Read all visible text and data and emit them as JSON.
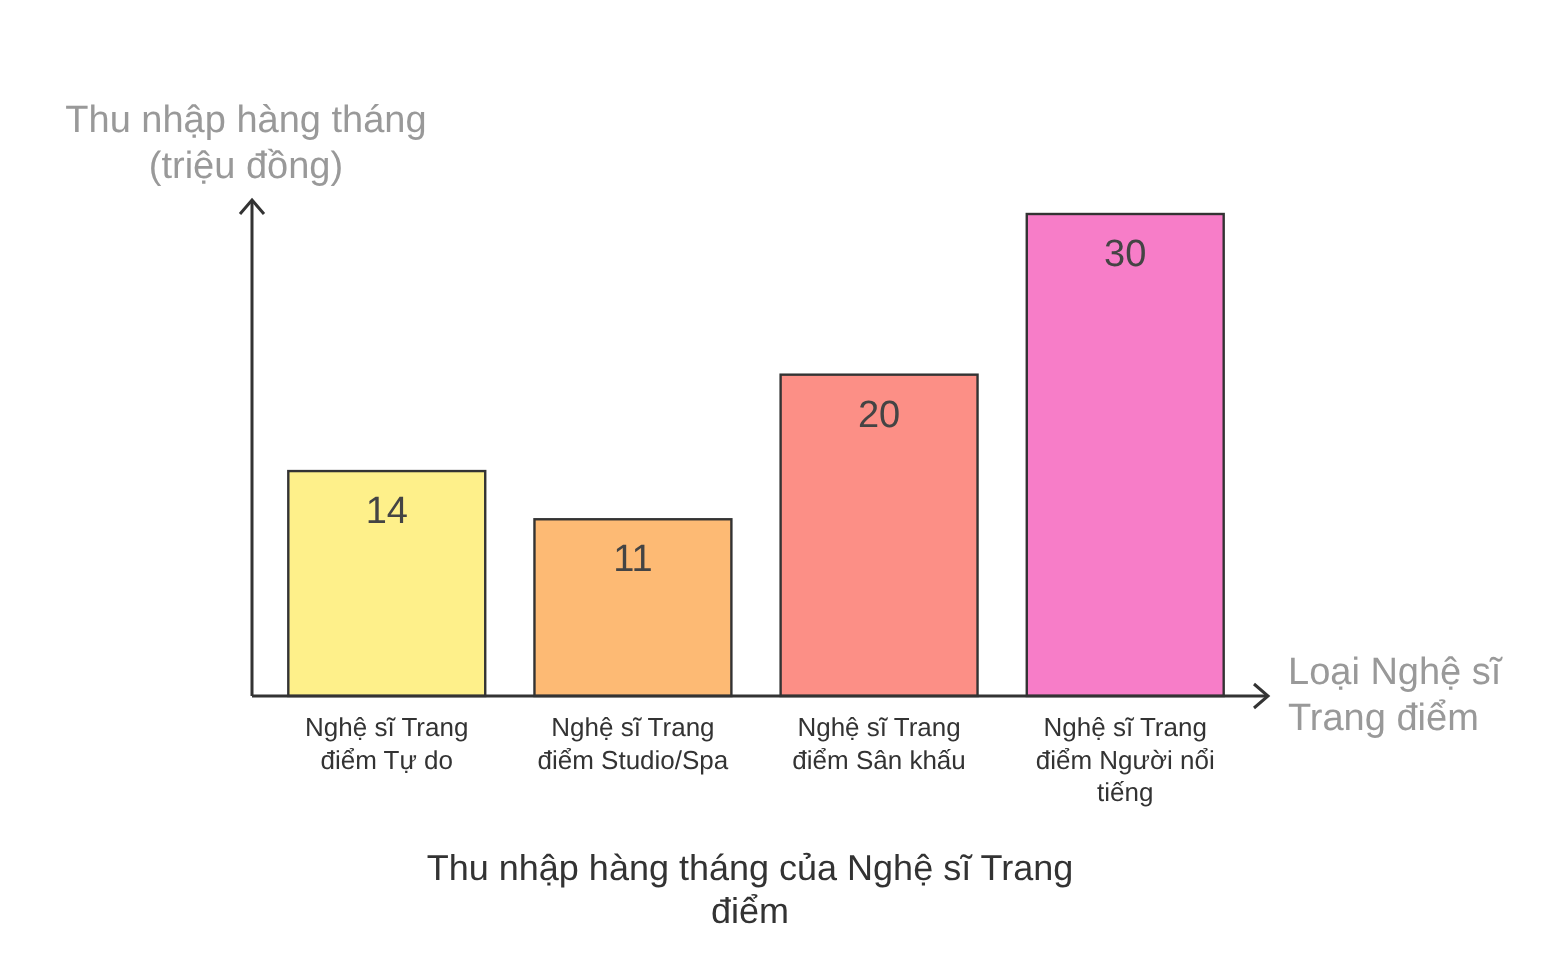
{
  "chart_data": {
    "type": "bar",
    "title": "Thu nhập hàng tháng của Nghệ sĩ Trang điểm",
    "xlabel": "Loại Nghệ sĩ Trang điểm",
    "ylabel": "Thu nhập hàng tháng (triệu đồng)",
    "categories": [
      "Nghệ sĩ Trang điểm Tự do",
      "Nghệ sĩ Trang điểm Studio/Spa",
      "Nghệ sĩ Trang điểm Sân khấu",
      "Nghệ sĩ Trang điểm Người nổi tiếng"
    ],
    "values": [
      14,
      11,
      20,
      30
    ],
    "colors": [
      "#fef08a",
      "#fdba74",
      "#fc8f86",
      "#f77dc8"
    ],
    "data_labels": true
  }
}
